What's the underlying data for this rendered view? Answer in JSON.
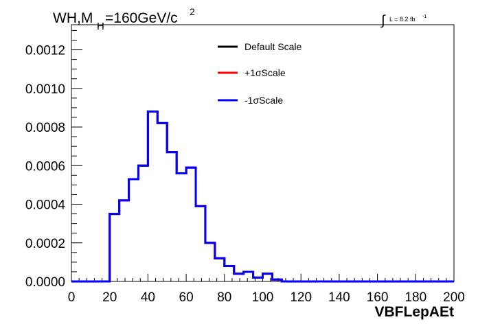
{
  "chart_data": {
    "type": "line",
    "title_main": "WH,M",
    "title_sub": "H",
    "title_rest": "=160GeV/c",
    "title_sup": "2",
    "lumi_label": "L = 8.2 fb",
    "lumi_sup": "-1",
    "xlabel": "VBFLepAEt",
    "ylabel": "",
    "xlim": [
      0,
      200
    ],
    "ylim": [
      0,
      0.00133
    ],
    "x_ticks": [
      "0",
      "20",
      "40",
      "60",
      "80",
      "100",
      "120",
      "140",
      "160",
      "180",
      "200"
    ],
    "y_ticks": [
      "0.0000",
      "0.0002",
      "0.0004",
      "0.0006",
      "0.0008",
      "0.0010",
      "0.0012"
    ],
    "grid": false,
    "legend_position": "top-center",
    "bin_edges": [
      0,
      5,
      10,
      15,
      20,
      25,
      30,
      35,
      40,
      45,
      50,
      55,
      60,
      65,
      70,
      75,
      80,
      85,
      90,
      95,
      100,
      105,
      110,
      115,
      120,
      125,
      130,
      135,
      140,
      145,
      150,
      155,
      160,
      165,
      170,
      175,
      180,
      185,
      190,
      195,
      200
    ],
    "series": [
      {
        "name": "Default Scale",
        "color": "#000000",
        "values": [
          0,
          0,
          0,
          0,
          0.00035,
          0.00042,
          0.00053,
          0.0006,
          0.00088,
          0.00082,
          0.00067,
          0.00056,
          0.00059,
          0.00039,
          0.0002,
          0.00012,
          8e-05,
          4e-05,
          5e-05,
          2e-05,
          4e-05,
          1e-05,
          0,
          0,
          0,
          0,
          0,
          0,
          0,
          0,
          0,
          0,
          0,
          0,
          0,
          0,
          0,
          0,
          0,
          0
        ]
      },
      {
        "name": "+1σScale",
        "color": "#ff0000",
        "values": [
          0,
          0,
          0,
          0,
          0.00035,
          0.00042,
          0.00053,
          0.0006,
          0.00088,
          0.00082,
          0.00067,
          0.00056,
          0.00059,
          0.00039,
          0.0002,
          0.00012,
          8e-05,
          4e-05,
          5e-05,
          2e-05,
          4e-05,
          1e-05,
          0,
          0,
          0,
          0,
          0,
          0,
          0,
          0,
          0,
          0,
          0,
          0,
          0,
          0,
          0,
          0,
          0,
          0
        ]
      },
      {
        "name": "-1σScale",
        "color": "#0000ff",
        "values": [
          0,
          0,
          0,
          0,
          0.00035,
          0.00042,
          0.00053,
          0.0006,
          0.00088,
          0.00082,
          0.00067,
          0.00056,
          0.00059,
          0.00039,
          0.0002,
          0.00012,
          8e-05,
          4e-05,
          5e-05,
          2e-05,
          4e-05,
          1e-05,
          0,
          0,
          0,
          0,
          0,
          0,
          0,
          0,
          0,
          0,
          0,
          0,
          0,
          0,
          0,
          0,
          0,
          0
        ]
      }
    ]
  }
}
